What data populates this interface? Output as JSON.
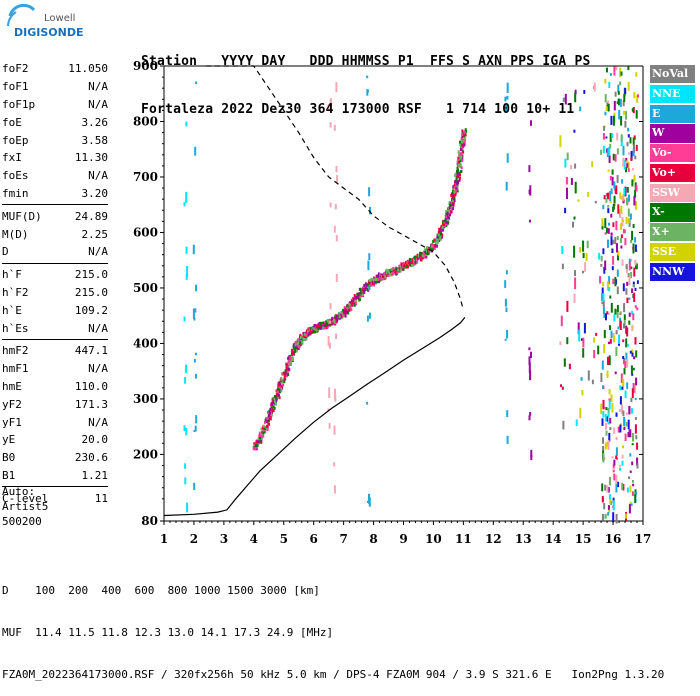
{
  "logo": {
    "line1": "Lowell",
    "line2": "DIGISONDE"
  },
  "header": {
    "row1": "Station   YYYY DAY   DDD HHMMSS P1  FFS S AXN PPS IGA PS",
    "row2": "Fortaleza 2022 Dez30 364 173000 RSF   1 714 100 10+ 11"
  },
  "params": [
    {
      "group": [
        {
          "name": "foF2",
          "value": "11.050"
        },
        {
          "name": "foF1",
          "value": "N/A"
        },
        {
          "name": "foF1p",
          "value": "N/A"
        },
        {
          "name": "foE",
          "value": "3.26"
        },
        {
          "name": "foEp",
          "value": "3.58"
        },
        {
          "name": "fxI",
          "value": "11.30"
        },
        {
          "name": "foEs",
          "value": "N/A"
        },
        {
          "name": "fmin",
          "value": "3.20"
        }
      ]
    },
    {
      "group": [
        {
          "name": "MUF(D)",
          "value": "24.89"
        },
        {
          "name": "M(D)",
          "value": "2.25"
        },
        {
          "name": "D",
          "value": "N/A"
        }
      ]
    },
    {
      "group": [
        {
          "name": "h`F",
          "value": "215.0"
        },
        {
          "name": "h`F2",
          "value": "215.0"
        },
        {
          "name": "h`E",
          "value": "109.2"
        },
        {
          "name": "h`Es",
          "value": "N/A"
        }
      ]
    },
    {
      "group": [
        {
          "name": "hmF2",
          "value": "447.1"
        },
        {
          "name": "hmF1",
          "value": "N/A"
        },
        {
          "name": "hmE",
          "value": "110.0"
        },
        {
          "name": "yF2",
          "value": "171.3"
        },
        {
          "name": "yF1",
          "value": "N/A"
        },
        {
          "name": "yE",
          "value": "20.0"
        },
        {
          "name": "B0",
          "value": "230.6"
        },
        {
          "name": "B1",
          "value": "1.21"
        }
      ]
    },
    {
      "group": [
        {
          "name": "C-level",
          "value": "11"
        }
      ]
    }
  ],
  "auto": {
    "line1": "Auto:",
    "line2": "Artist5",
    "line3": "500200"
  },
  "legend": [
    {
      "label": "NoVal",
      "bg": "#808080",
      "fg": "#ffffff"
    },
    {
      "label": "NNE",
      "bg": "#00e5ff",
      "fg": "#ffffff"
    },
    {
      "label": "E",
      "bg": "#1ca8d8",
      "fg": "#ffffff"
    },
    {
      "label": "W",
      "bg": "#a000a0",
      "fg": "#ffffff"
    },
    {
      "label": "Vo-",
      "bg": "#ff3c96",
      "fg": "#ffffff"
    },
    {
      "label": "Vo+",
      "bg": "#e8003c",
      "fg": "#ffffff"
    },
    {
      "label": "SSW",
      "bg": "#f5a8b4",
      "fg": "#ffffff"
    },
    {
      "label": "X-",
      "bg": "#007800",
      "fg": "#ffffff"
    },
    {
      "label": "X+",
      "bg": "#6cb464",
      "fg": "#ffffff"
    },
    {
      "label": "SSE",
      "bg": "#d2d200",
      "fg": "#ffffff"
    },
    {
      "label": "NNW",
      "bg": "#1414dc",
      "fg": "#ffffff"
    }
  ],
  "footer": {
    "row1": "D    100  200  400  600  800 1000 1500 3000 [km]",
    "row2": "MUF  11.4 11.5 11.8 12.3 13.0 14.1 17.3 24.9 [MHz]",
    "row3": "FZA0M_2022364173000.RSF / 320fx256h 50 kHz 5.0 km / DPS-4 FZA0M 904 / 3.9 S 321.6 E   Ion2Png 1.3.20"
  },
  "chart_data": {
    "type": "scatter",
    "xlim": [
      1,
      17
    ],
    "ylim": [
      80,
      900
    ],
    "xticks": [
      "1",
      "2",
      "3",
      "4",
      "5",
      "6",
      "7",
      "8",
      "9",
      "10",
      "11",
      "12",
      "13",
      "14",
      "15",
      "16",
      "17"
    ],
    "yticks": [
      "80",
      "200",
      "300",
      "400",
      "500",
      "600",
      "700",
      "800",
      "900"
    ],
    "grid": false,
    "trace": {
      "x": [
        4.0,
        4.15,
        4.35,
        4.55,
        4.75,
        4.95,
        5.15,
        5.35,
        5.55,
        5.75,
        5.95,
        6.15,
        6.35,
        6.55,
        6.75,
        7.0,
        7.25,
        7.5,
        7.75,
        8.0,
        8.25,
        8.5,
        8.75,
        9.0,
        9.25,
        9.5,
        9.75,
        10.0,
        10.2,
        10.4,
        10.55,
        10.7,
        10.8,
        10.9,
        11.0
      ],
      "y": [
        215,
        228,
        250,
        280,
        310,
        340,
        368,
        392,
        410,
        420,
        428,
        432,
        436,
        441,
        447,
        458,
        474,
        490,
        505,
        516,
        524,
        530,
        535,
        543,
        550,
        558,
        566,
        580,
        600,
        625,
        650,
        680,
        710,
        750,
        790
      ]
    },
    "true_height": {
      "x": [
        1.0,
        2.0,
        2.8,
        3.1,
        3.4,
        3.8,
        4.2,
        4.8,
        5.4,
        6.0,
        6.6,
        7.2,
        7.8,
        8.4,
        9.0,
        9.6,
        10.2,
        10.6,
        10.9,
        11.05
      ],
      "y": [
        90,
        92,
        96,
        100,
        120,
        145,
        170,
        200,
        230,
        258,
        283,
        305,
        327,
        348,
        370,
        390,
        410,
        425,
        437,
        447
      ]
    },
    "density": {
      "x": [
        2.4,
        3.2,
        4.0,
        4.5,
        5.0,
        5.5,
        6.0,
        6.5,
        7.0,
        7.5,
        8.0,
        8.5,
        9.0,
        9.5,
        10.0,
        10.4,
        10.7,
        10.9,
        11.0
      ],
      "y": [
        900,
        900,
        900,
        860,
        820,
        780,
        735,
        700,
        680,
        660,
        630,
        610,
        595,
        580,
        565,
        540,
        510,
        480,
        460
      ]
    }
  }
}
